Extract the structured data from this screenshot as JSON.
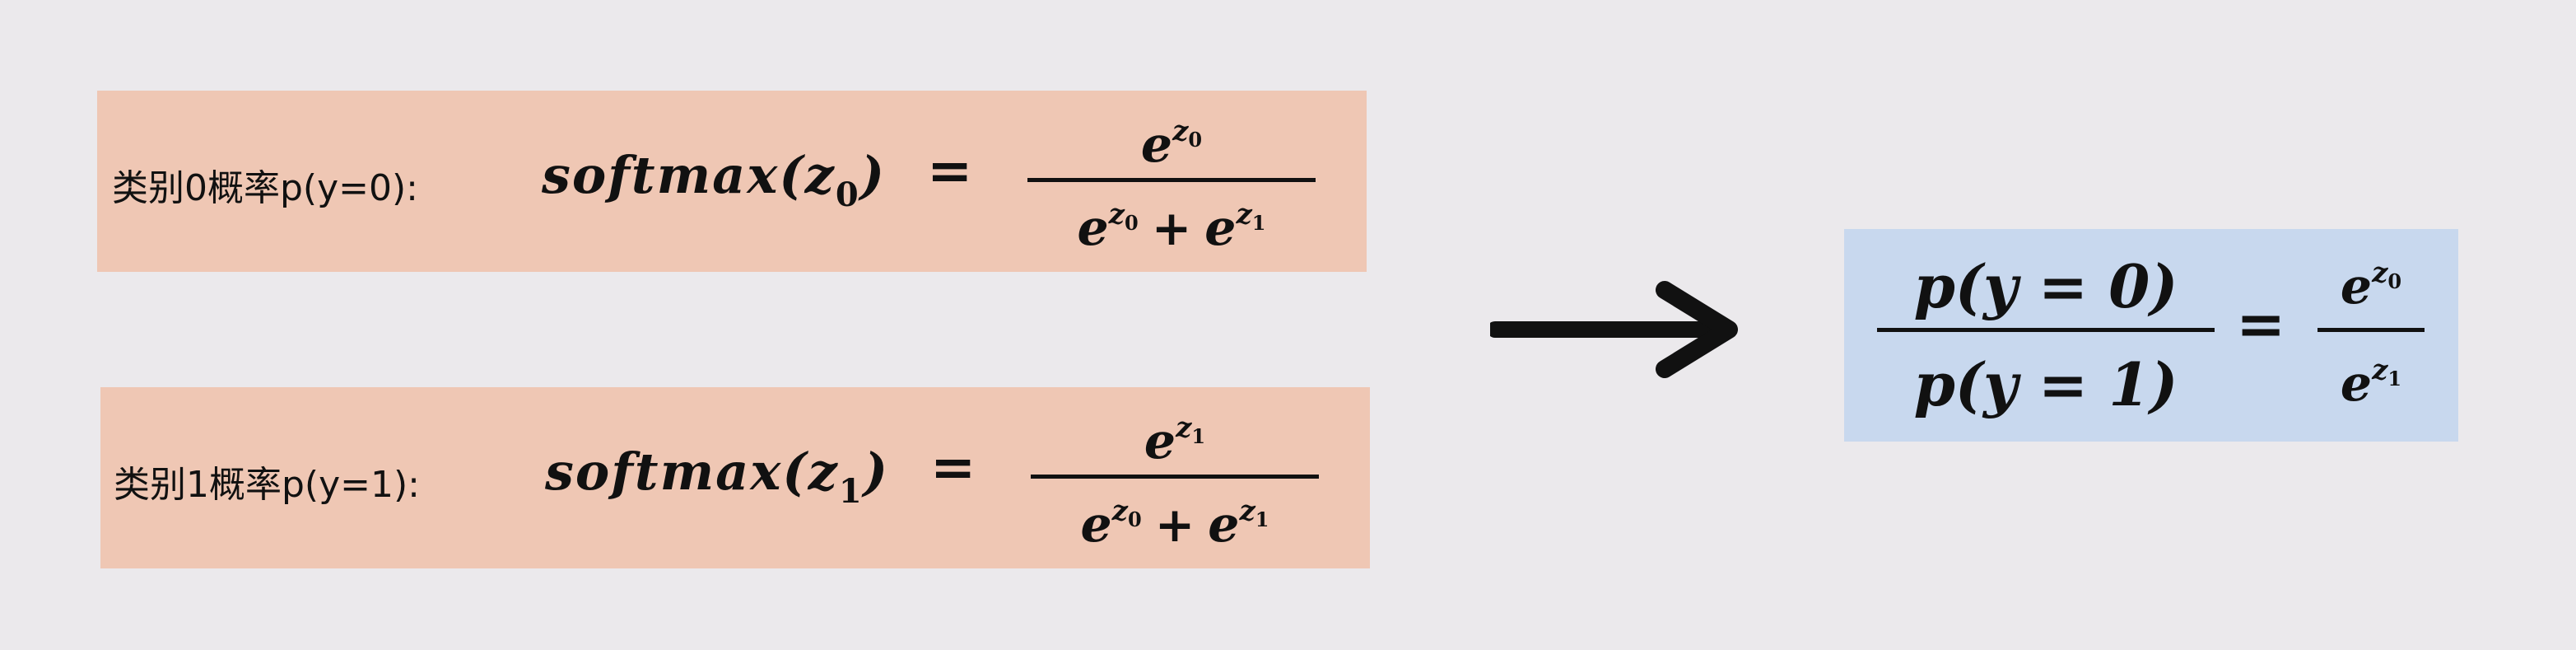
{
  "class0": {
    "label": "类别0概率p(y=0):",
    "func_name": "softmax",
    "arg": "z",
    "arg_sub": "0",
    "numerator_exp_sub": "0",
    "denominator_terms": [
      {
        "base": "e",
        "sup": "z",
        "sub": "0"
      },
      {
        "base": "e",
        "sup": "z",
        "sub": "1"
      }
    ],
    "equals": "=",
    "plus": "+"
  },
  "class1": {
    "label": "类别1概率p(y=1):",
    "func_name": "softmax",
    "arg": "z",
    "arg_sub": "1",
    "numerator_exp_sub": "1",
    "denominator_terms": [
      {
        "base": "e",
        "sup": "z",
        "sub": "0"
      },
      {
        "base": "e",
        "sup": "z",
        "sub": "1"
      }
    ],
    "equals": "=",
    "plus": "+"
  },
  "ratio": {
    "numerator": "p(y = 0)",
    "denominator": "p(y = 1)",
    "equals": "=",
    "right_numerator_sub": "0",
    "right_denominator_sub": "1",
    "base": "e",
    "sup": "z"
  },
  "colors": {
    "background": "#ebe9ec",
    "orange_box": "#efc7b4",
    "blue_box": "#c8d8ee",
    "ink": "#111111"
  },
  "icons": {
    "arrow": "right-arrow-icon"
  }
}
